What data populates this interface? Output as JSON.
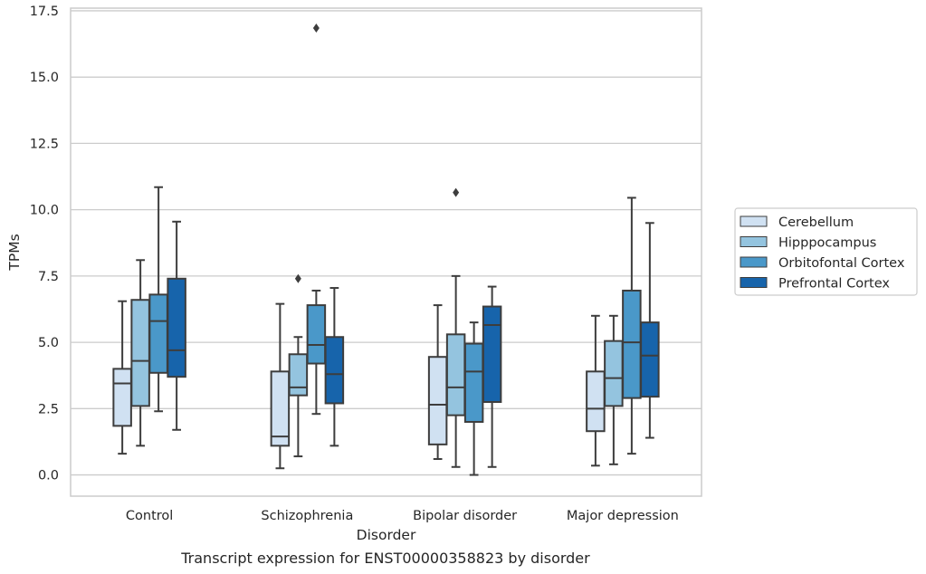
{
  "colors": {
    "grid": "#cccccc",
    "frame": "#cccccc",
    "stroke": "#3d3d3d",
    "series": [
      "#d0e1f2",
      "#94c4df",
      "#4a98c9",
      "#1764ab"
    ]
  },
  "chart_data": {
    "type": "box",
    "title": "",
    "caption": "Transcript expression for ENST00000358823 by disorder",
    "xlabel": "Disorder",
    "ylabel": "TPMs",
    "ylim": [
      -0.8,
      17.6
    ],
    "yticks": [
      0.0,
      2.5,
      5.0,
      7.5,
      10.0,
      12.5,
      15.0,
      17.5
    ],
    "ytick_labels": [
      "0.0",
      "2.5",
      "5.0",
      "7.5",
      "10.0",
      "12.5",
      "15.0",
      "17.5"
    ],
    "grid": "horizontal",
    "legend_position": "right",
    "categories": [
      "Control",
      "Schizophrenia",
      "Bipolar disorder",
      "Major depression"
    ],
    "series": [
      {
        "name": "Cerebellum",
        "boxes": [
          {
            "whislo": 0.8,
            "q1": 1.85,
            "med": 3.45,
            "q3": 4.0,
            "whishi": 6.55,
            "fliers": []
          },
          {
            "whislo": 0.25,
            "q1": 1.1,
            "med": 1.45,
            "q3": 3.9,
            "whishi": 6.45,
            "fliers": []
          },
          {
            "whislo": 0.6,
            "q1": 1.15,
            "med": 2.65,
            "q3": 4.45,
            "whishi": 6.4,
            "fliers": []
          },
          {
            "whislo": 0.35,
            "q1": 1.65,
            "med": 2.5,
            "q3": 3.9,
            "whishi": 6.0,
            "fliers": []
          }
        ]
      },
      {
        "name": "Hipppocampus",
        "boxes": [
          {
            "whislo": 1.1,
            "q1": 2.6,
            "med": 4.3,
            "q3": 6.6,
            "whishi": 8.1,
            "fliers": []
          },
          {
            "whislo": 0.7,
            "q1": 3.0,
            "med": 3.3,
            "q3": 4.55,
            "whishi": 5.2,
            "fliers": [
              7.4
            ]
          },
          {
            "whislo": 0.3,
            "q1": 2.25,
            "med": 3.3,
            "q3": 5.3,
            "whishi": 7.5,
            "fliers": [
              10.65
            ]
          },
          {
            "whislo": 0.4,
            "q1": 2.6,
            "med": 3.65,
            "q3": 5.05,
            "whishi": 6.0,
            "fliers": []
          }
        ]
      },
      {
        "name": "Orbitofontal Cortex",
        "boxes": [
          {
            "whislo": 2.4,
            "q1": 3.85,
            "med": 5.8,
            "q3": 6.8,
            "whishi": 10.85,
            "fliers": []
          },
          {
            "whislo": 2.3,
            "q1": 4.2,
            "med": 4.9,
            "q3": 6.4,
            "whishi": 6.95,
            "fliers": [
              16.85
            ]
          },
          {
            "whislo": 0.0,
            "q1": 2.0,
            "med": 3.9,
            "q3": 4.95,
            "whishi": 5.75,
            "fliers": []
          },
          {
            "whislo": 0.8,
            "q1": 2.9,
            "med": 5.0,
            "q3": 6.95,
            "whishi": 10.45,
            "fliers": []
          }
        ]
      },
      {
        "name": "Prefrontal Cortex",
        "boxes": [
          {
            "whislo": 1.7,
            "q1": 3.7,
            "med": 4.7,
            "q3": 7.4,
            "whishi": 9.55,
            "fliers": []
          },
          {
            "whislo": 1.1,
            "q1": 2.7,
            "med": 3.8,
            "q3": 5.2,
            "whishi": 7.05,
            "fliers": []
          },
          {
            "whislo": 0.3,
            "q1": 2.75,
            "med": 5.65,
            "q3": 6.35,
            "whishi": 7.1,
            "fliers": []
          },
          {
            "whislo": 1.4,
            "q1": 2.95,
            "med": 4.5,
            "q3": 5.75,
            "whishi": 9.5,
            "fliers": []
          }
        ]
      }
    ]
  }
}
